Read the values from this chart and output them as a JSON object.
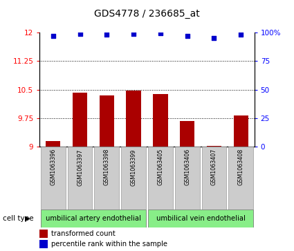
{
  "title": "GDS4778 / 236685_at",
  "samples": [
    "GSM1063396",
    "GSM1063397",
    "GSM1063398",
    "GSM1063399",
    "GSM1063405",
    "GSM1063406",
    "GSM1063407",
    "GSM1063408"
  ],
  "bar_values": [
    9.15,
    10.42,
    10.35,
    10.48,
    10.38,
    9.68,
    9.03,
    9.82
  ],
  "dot_values": [
    97,
    99,
    98.5,
    99.2,
    99.3,
    97,
    95,
    98
  ],
  "ylim_left": [
    9,
    12
  ],
  "ylim_right": [
    0,
    100
  ],
  "yticks_left": [
    9,
    9.75,
    10.5,
    11.25,
    12
  ],
  "yticks_right": [
    0,
    25,
    50,
    75,
    100
  ],
  "ytick_labels_left": [
    "9",
    "9.75",
    "10.5",
    "11.25",
    "12"
  ],
  "ytick_labels_right": [
    "0",
    "25",
    "50",
    "75",
    "100%"
  ],
  "hlines": [
    9.75,
    10.5,
    11.25
  ],
  "bar_color": "#aa0000",
  "dot_color": "#0000cc",
  "group1_label": "umbilical artery endothelial",
  "group2_label": "umbilical vein endothelial",
  "group1_samples": [
    0,
    1,
    2,
    3
  ],
  "group2_samples": [
    4,
    5,
    6,
    7
  ],
  "cell_type_label": "cell type",
  "legend_bar_label": "transformed count",
  "legend_dot_label": "percentile rank within the sample",
  "group_color": "#88ee88",
  "sample_box_color": "#cccccc",
  "background_color": "#ffffff"
}
